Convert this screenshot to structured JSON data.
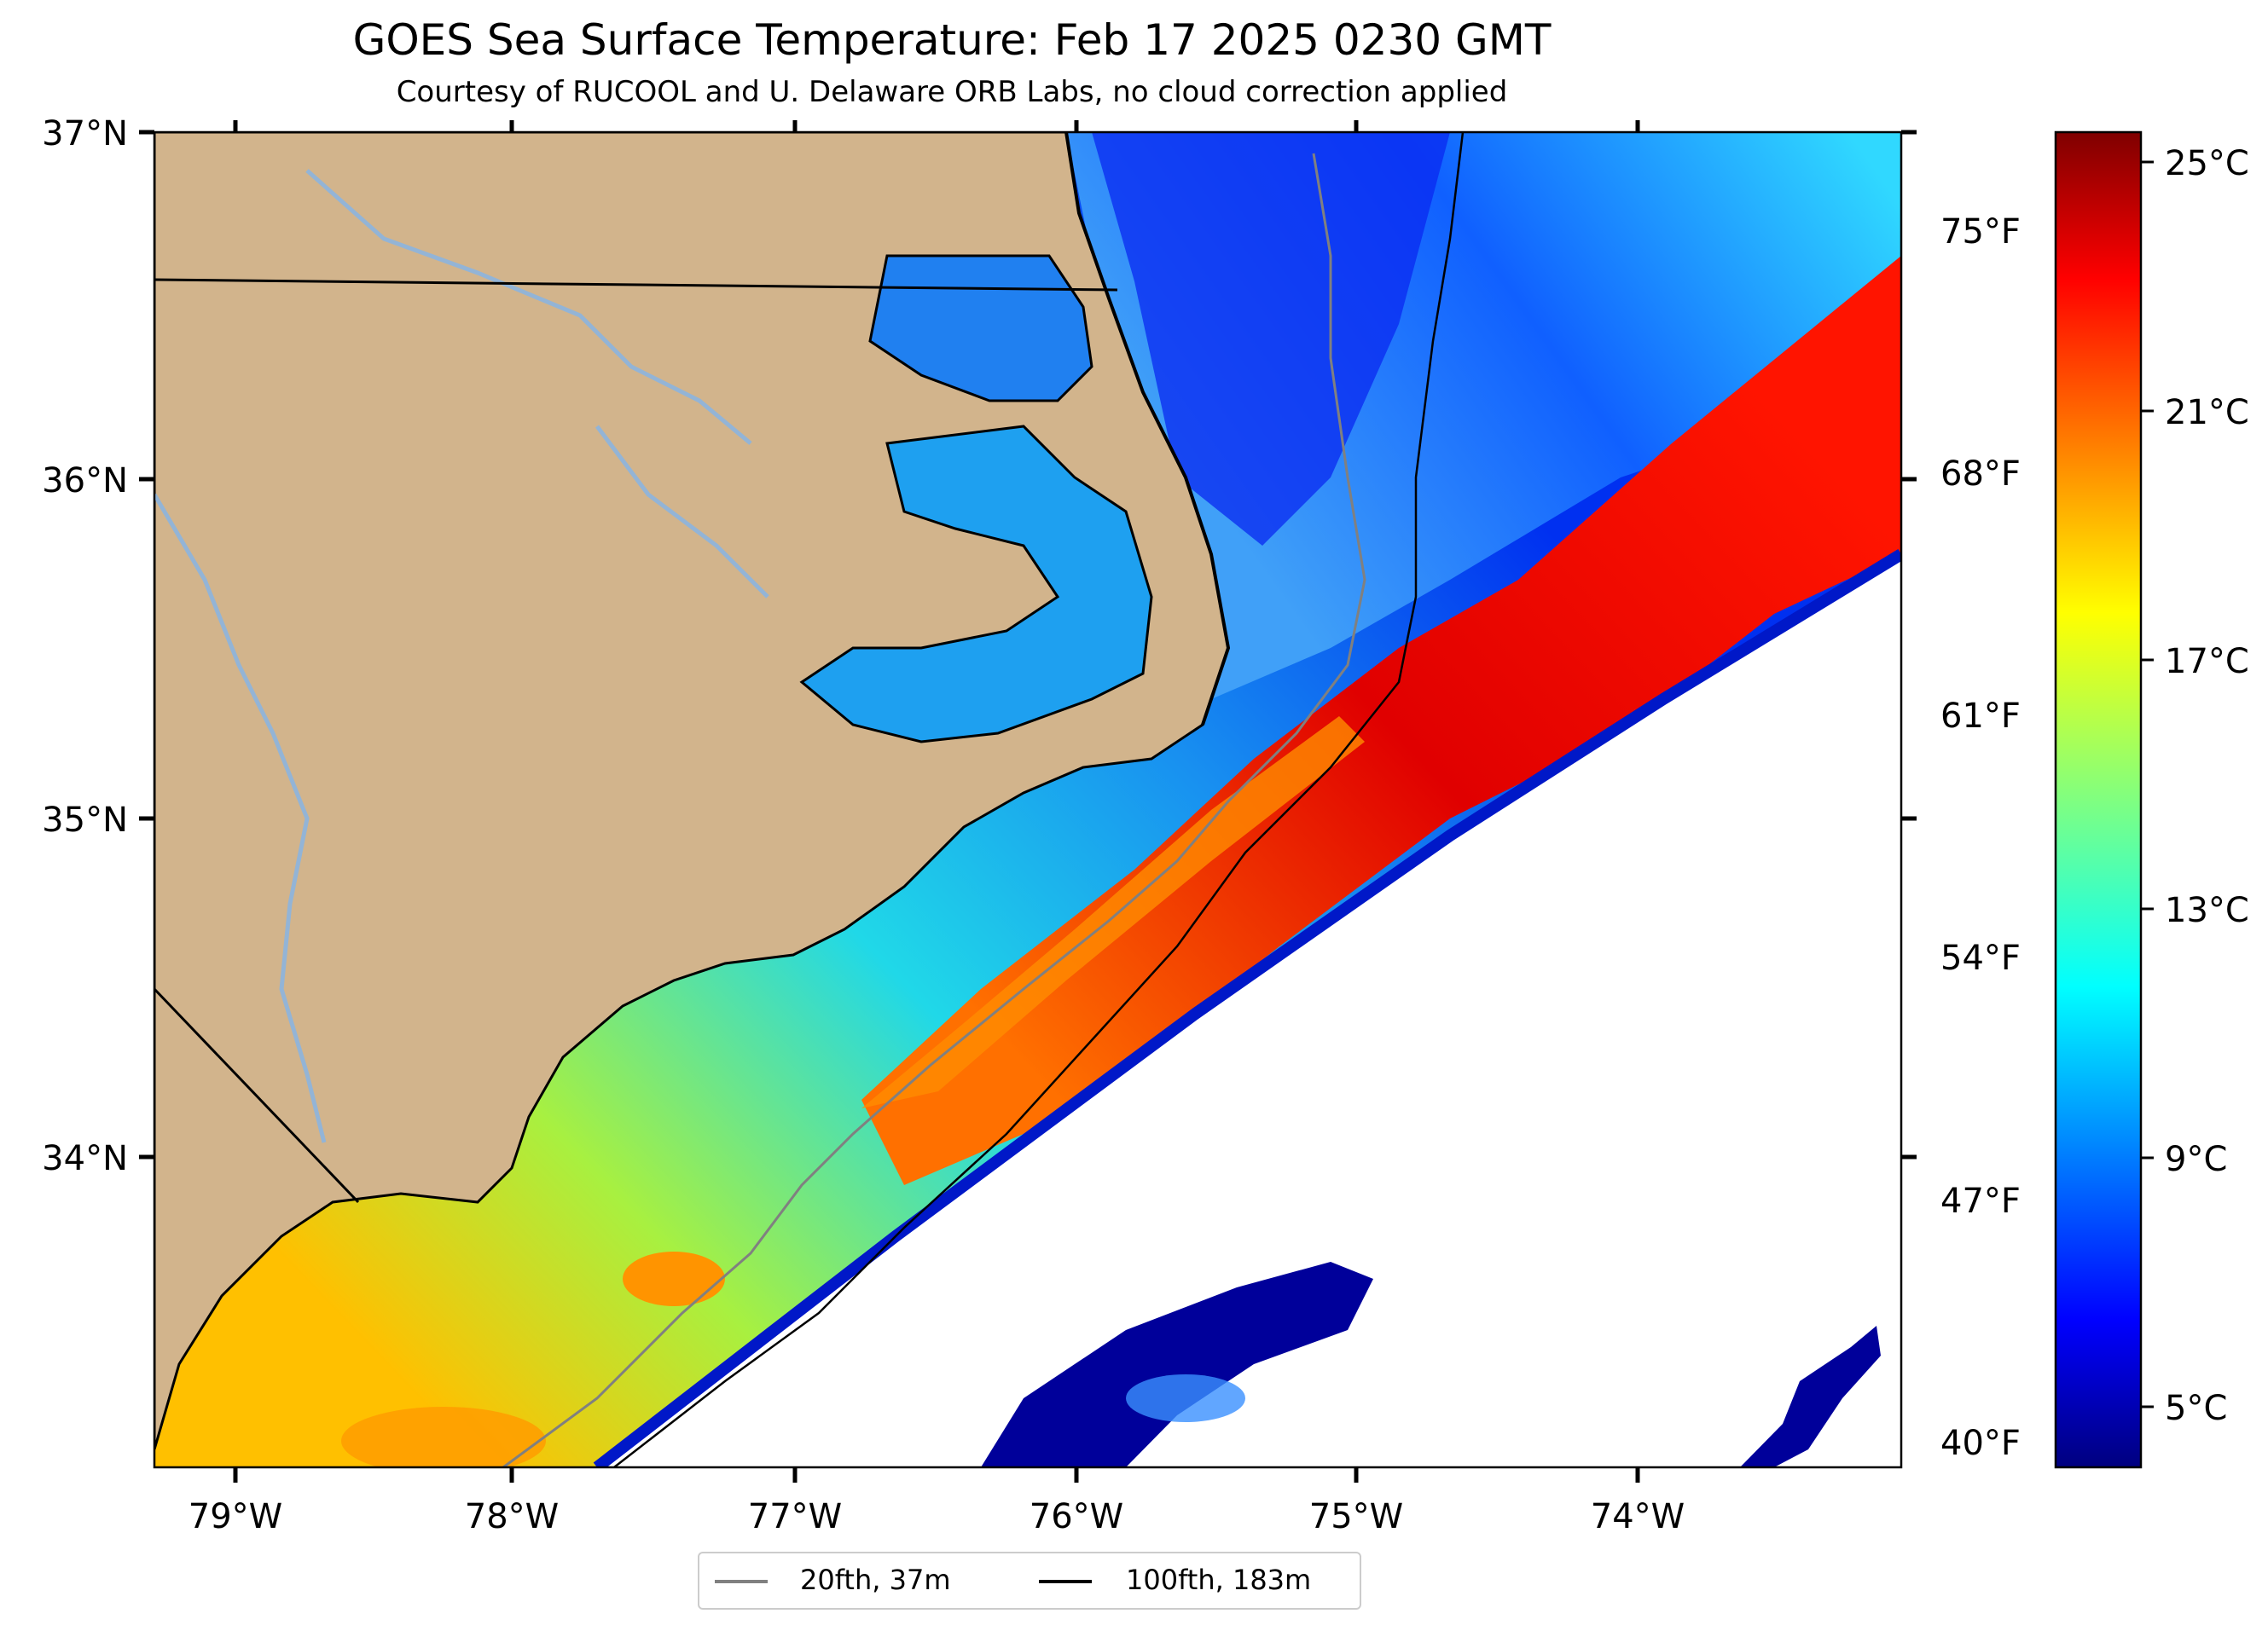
{
  "title": "GOES Sea Surface Temperature: Feb 17 2025 0230 GMT",
  "subtitle": "Courtesy of RUCOOL and U. Delaware ORB Labs, no cloud correction applied",
  "map": {
    "lat_labels": [
      "37°N",
      "36°N",
      "35°N",
      "34°N"
    ],
    "lon_labels": [
      "79°W",
      "78°W",
      "77°W",
      "76°W",
      "75°W",
      "74°W"
    ],
    "fahrenheit_labels": [
      "75°F",
      "68°F",
      "61°F",
      "54°F",
      "47°F",
      "40°F"
    ],
    "extent": {
      "lon_min": -79.28,
      "lon_max": -73.08,
      "lat_min": 33.18,
      "lat_max": 37.0
    },
    "land_color": "#d2b48c",
    "river_color": "#93b4d6",
    "no_data_color": "#ffffff"
  },
  "colorbar": {
    "labels": [
      "25°C",
      "21°C",
      "17°C",
      "13°C",
      "9°C",
      "5°C"
    ],
    "colormap": "jet",
    "range_c": [
      3.5,
      25.5
    ]
  },
  "legend": [
    {
      "label": "20fth, 37m",
      "color": "#808080"
    },
    {
      "label": "100fth, 183m",
      "color": "#000000"
    }
  ]
}
